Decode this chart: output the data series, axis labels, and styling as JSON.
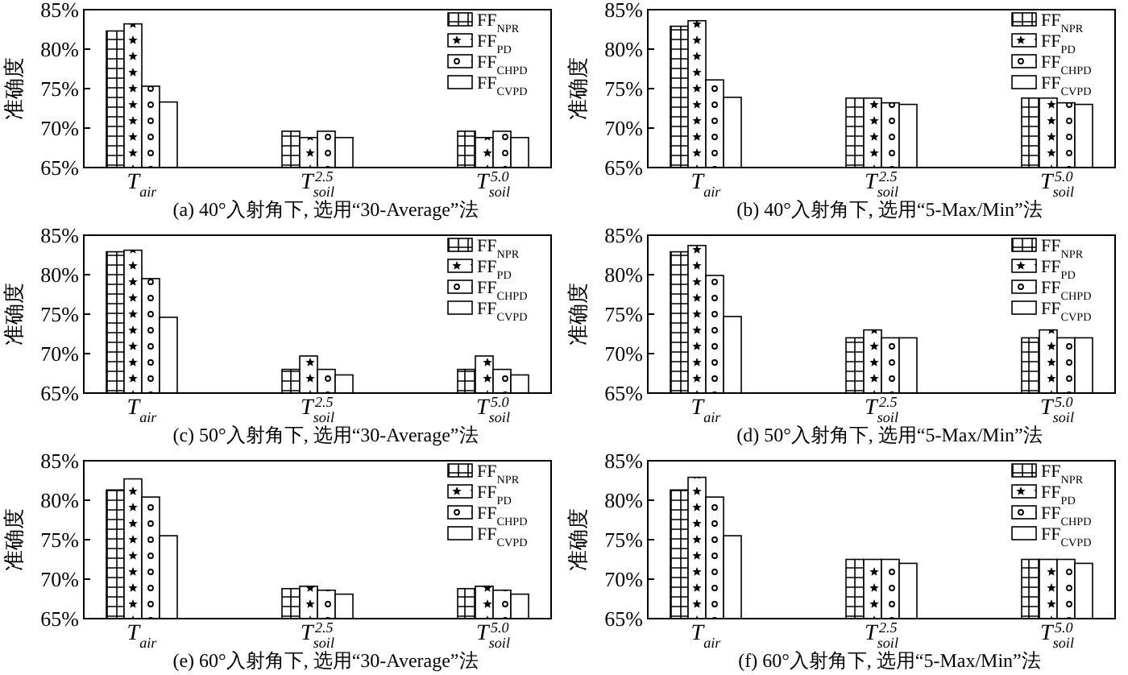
{
  "chart_data": [
    {
      "type": "bar",
      "title": "(a) 40°入射角下, 选用“30-Average”法",
      "ylabel": "准确度",
      "categories": [
        "T$_{air}$",
        "T$_{soil}$$^{2.5}$",
        "T$_{soil}$$^{5.0}$"
      ],
      "ylim": [
        65,
        85
      ],
      "yticks": [
        {
          "value": 65,
          "label": "65%"
        },
        {
          "value": 70,
          "label": "70%"
        },
        {
          "value": 75,
          "label": "75%"
        },
        {
          "value": 80,
          "label": "80%"
        },
        {
          "value": 85,
          "label": "85%"
        }
      ],
      "legend": "top right",
      "series": [
        {
          "name": "FF$_{NPR}$",
          "color": "#000000",
          "values": [
            82.3,
            69.6,
            69.6
          ]
        },
        {
          "name": "FF$_{PD}$",
          "color": "#000000",
          "values": [
            83.2,
            68.8,
            68.8
          ]
        },
        {
          "name": "FF$_{CHPD}$",
          "color": "#000000",
          "values": [
            75.3,
            69.6,
            69.6
          ]
        },
        {
          "name": "FF$_{CVPD}$",
          "color": "#000000",
          "values": [
            73.3,
            68.8,
            68.8
          ]
        }
      ]
    },
    {
      "type": "bar",
      "title": "(b) 40°入射角下, 选用“5-Max/Min”法",
      "ylabel": "准确度",
      "categories": [
        "T$_{air}$",
        "T$_{soil}$$^{2.5}$",
        "T$_{soil}$$^{5.0}$"
      ],
      "ylim": [
        65,
        85
      ],
      "yticks": [
        {
          "value": 65,
          "label": "65%"
        },
        {
          "value": 70,
          "label": "70%"
        },
        {
          "value": 75,
          "label": "75%"
        },
        {
          "value": 80,
          "label": "80%"
        },
        {
          "value": 85,
          "label": "85%"
        }
      ],
      "legend": "top right",
      "series": [
        {
          "name": "FF$_{NPR}$",
          "color": "#000000",
          "values": [
            82.9,
            73.8,
            73.8
          ]
        },
        {
          "name": "FF$_{PD}$",
          "color": "#000000",
          "values": [
            83.6,
            73.8,
            73.8
          ]
        },
        {
          "name": "FF$_{CHPD}$",
          "color": "#000000",
          "values": [
            76.1,
            73.2,
            73.2
          ]
        },
        {
          "name": "FF$_{CVPD}$",
          "color": "#000000",
          "values": [
            73.9,
            73.0,
            73.0
          ]
        }
      ]
    },
    {
      "type": "bar",
      "title": "(c) 50°入射角下, 选用“30-Average”法",
      "ylabel": "准确度",
      "categories": [
        "T$_{air}$",
        "T$_{soil}$$^{2.5}$",
        "T$_{soil}$$^{5.0}$"
      ],
      "ylim": [
        65,
        85
      ],
      "yticks": [
        {
          "value": 65,
          "label": "65%"
        },
        {
          "value": 70,
          "label": "70%"
        },
        {
          "value": 75,
          "label": "75%"
        },
        {
          "value": 80,
          "label": "80%"
        },
        {
          "value": 85,
          "label": "85%"
        }
      ],
      "legend": "top right",
      "series": [
        {
          "name": "FF$_{NPR}$",
          "color": "#000000",
          "values": [
            82.9,
            68.0,
            68.0
          ]
        },
        {
          "name": "FF$_{PD}$",
          "color": "#000000",
          "values": [
            83.1,
            69.7,
            69.7
          ]
        },
        {
          "name": "FF$_{CHPD}$",
          "color": "#000000",
          "values": [
            79.5,
            68.0,
            68.0
          ]
        },
        {
          "name": "FF$_{CVPD}$",
          "color": "#000000",
          "values": [
            74.6,
            67.3,
            67.3
          ]
        }
      ]
    },
    {
      "type": "bar",
      "title": "(d) 50°入射角下, 选用“5-Max/Min”法",
      "ylabel": "准确度",
      "categories": [
        "T$_{air}$",
        "T$_{soil}$$^{2.5}$",
        "T$_{soil}$$^{5.0}$"
      ],
      "ylim": [
        65,
        85
      ],
      "yticks": [
        {
          "value": 65,
          "label": "65%"
        },
        {
          "value": 70,
          "label": "70%"
        },
        {
          "value": 75,
          "label": "75%"
        },
        {
          "value": 80,
          "label": "80%"
        },
        {
          "value": 85,
          "label": "85%"
        }
      ],
      "legend": "top right",
      "series": [
        {
          "name": "FF$_{NPR}$",
          "color": "#000000",
          "values": [
            82.9,
            72.0,
            72.0
          ]
        },
        {
          "name": "FF$_{PD}$",
          "color": "#000000",
          "values": [
            83.7,
            73.0,
            73.0
          ]
        },
        {
          "name": "FF$_{CHPD}$",
          "color": "#000000",
          "values": [
            79.9,
            72.0,
            72.0
          ]
        },
        {
          "name": "FF$_{CVPD}$",
          "color": "#000000",
          "values": [
            74.7,
            72.0,
            72.0
          ]
        }
      ]
    },
    {
      "type": "bar",
      "title": "(e) 60°入射角下, 选用“30-Average”法",
      "ylabel": "准确度",
      "categories": [
        "T$_{air}$",
        "T$_{soil}$$^{2.5}$",
        "T$_{soil}$$^{5.0}$"
      ],
      "ylim": [
        65,
        85
      ],
      "yticks": [
        {
          "value": 65,
          "label": "65%"
        },
        {
          "value": 70,
          "label": "70%"
        },
        {
          "value": 75,
          "label": "75%"
        },
        {
          "value": 80,
          "label": "80%"
        },
        {
          "value": 85,
          "label": "85%"
        }
      ],
      "legend": "top right",
      "series": [
        {
          "name": "FF$_{NPR}$",
          "color": "#000000",
          "values": [
            81.3,
            68.8,
            68.8
          ]
        },
        {
          "name": "FF$_{PD}$",
          "color": "#000000",
          "values": [
            82.7,
            69.1,
            69.1
          ]
        },
        {
          "name": "FF$_{CHPD}$",
          "color": "#000000",
          "values": [
            80.4,
            68.6,
            68.6
          ]
        },
        {
          "name": "FF$_{CVPD}$",
          "color": "#000000",
          "values": [
            75.5,
            68.1,
            68.1
          ]
        }
      ]
    },
    {
      "type": "bar",
      "title": "(f) 60°入射角下, 选用“5-Max/Min”法",
      "ylabel": "准确度",
      "categories": [
        "T$_{air}$",
        "T$_{soil}$$^{2.5}$",
        "T$_{soil}$$^{5.0}$"
      ],
      "ylim": [
        65,
        85
      ],
      "yticks": [
        {
          "value": 65,
          "label": "65%"
        },
        {
          "value": 70,
          "label": "70%"
        },
        {
          "value": 75,
          "label": "75%"
        },
        {
          "value": 80,
          "label": "80%"
        },
        {
          "value": 85,
          "label": "85%"
        }
      ],
      "legend": "top right",
      "series": [
        {
          "name": "FF$_{NPR}$",
          "color": "#000000",
          "values": [
            81.3,
            72.5,
            72.5
          ]
        },
        {
          "name": "FF$_{PD}$",
          "color": "#000000",
          "values": [
            82.9,
            72.5,
            72.5
          ]
        },
        {
          "name": "FF$_{CHPD}$",
          "color": "#000000",
          "values": [
            80.4,
            72.5,
            72.5
          ]
        },
        {
          "name": "FF$_{CVPD}$",
          "color": "#000000",
          "values": [
            75.5,
            72.0,
            72.0
          ]
        }
      ]
    }
  ]
}
